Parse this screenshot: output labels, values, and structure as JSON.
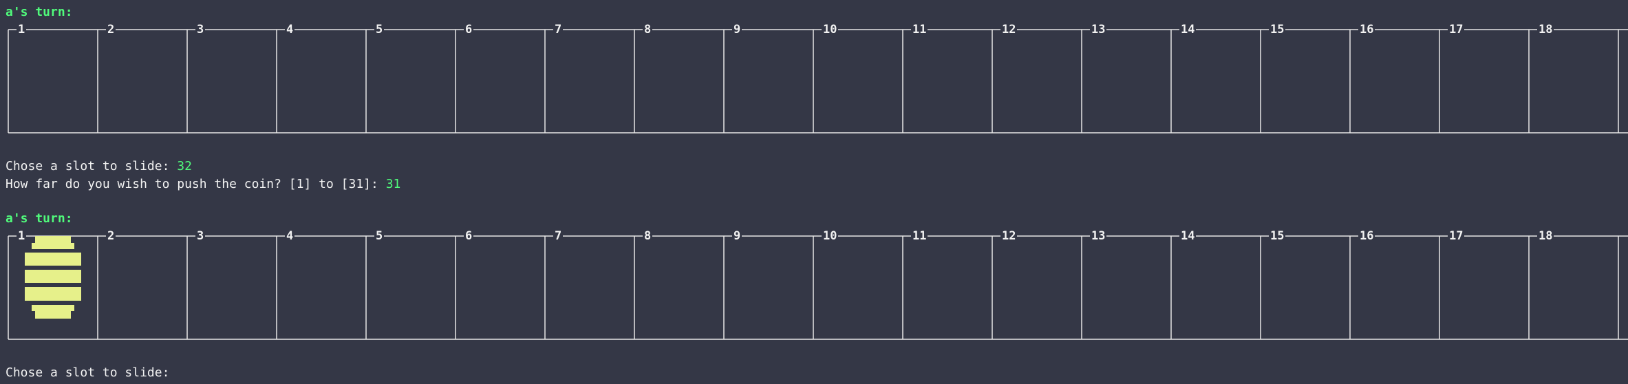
{
  "terminal": {
    "block1": {
      "turn_label": "a's turn:",
      "slot_prompt": "Chose a slot to slide: ",
      "slot_answer": "32",
      "push_prompt": "How far do you wish to push the coin? [1] to [31]: ",
      "push_answer": "31"
    },
    "block2": {
      "turn_label": "a's turn:",
      "slot_prompt": "Chose a slot to slide:"
    }
  },
  "boards": [
    {
      "slots": [
        "1",
        "2",
        "3",
        "4",
        "5",
        "6",
        "7",
        "8",
        "9",
        "10",
        "11",
        "12",
        "13",
        "14",
        "15",
        "16",
        "17",
        "18"
      ],
      "coin_in_slot": null
    },
    {
      "slots": [
        "1",
        "2",
        "3",
        "4",
        "5",
        "6",
        "7",
        "8",
        "9",
        "10",
        "11",
        "12",
        "13",
        "14",
        "15",
        "16",
        "17",
        "18"
      ],
      "coin_in_slot": "1"
    }
  ],
  "colors": {
    "background": "#343746",
    "turn_text": "#50fa7b",
    "board_lines": "#e6e6e6",
    "coin": "#e6f08a"
  }
}
